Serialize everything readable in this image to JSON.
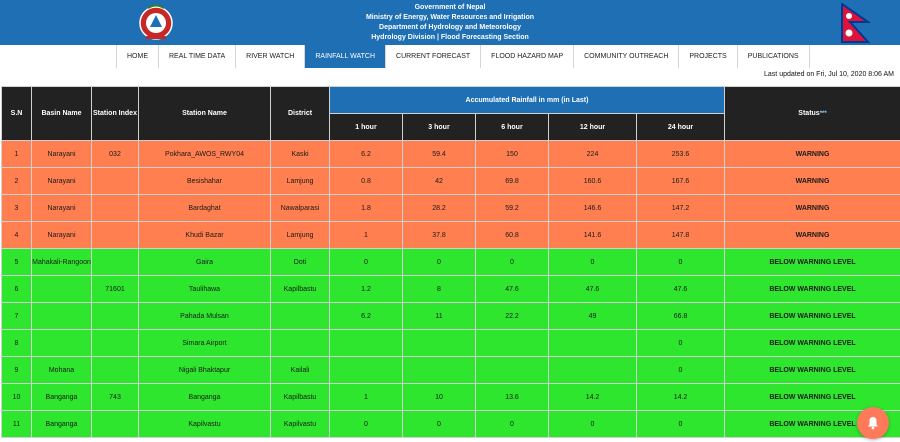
{
  "header": {
    "line1": "Government of Nepal",
    "line2": "Ministry of Energy, Water Resources and Irrigation",
    "line3": "Department of Hydrology and Meteorology",
    "line4": "Hydrology Division | Flood Forecasting Section",
    "emblem_icon": "nepal-emblem-icon",
    "flag_icon": "nepal-flag-icon"
  },
  "nav": {
    "items": [
      "HOME",
      "REAL TIME DATA",
      "RIVER WATCH",
      "RAINFALL WATCH",
      "CURRENT FORECAST",
      "FLOOD HAZARD MAP",
      "COMMUNITY OUTREACH",
      "PROJECTS",
      "PUBLICATIONS"
    ],
    "active": "RAINFALL WATCH"
  },
  "last_updated": "Last updated on Fri, Jul 10, 2020 8:06 AM",
  "table": {
    "headers": {
      "sn": "S.N",
      "basin": "Basin Name",
      "index": "Station Index",
      "station": "Station Name",
      "district": "District",
      "accum": "Accumulated Rainfall in mm (in Last)",
      "h1": "1 hour",
      "h3": "3 hour",
      "h6": "6 hour",
      "h12": "12 hour",
      "h24": "24 hour",
      "status": "Status",
      "status_mark": "***"
    },
    "rows": [
      [
        "1",
        "Narayani",
        "032",
        "Pokhara_AWOS_RWY04",
        "Kaski",
        "6.2",
        "59.4",
        "150",
        "224",
        "253.6",
        "WARNING"
      ],
      [
        "2",
        "Narayani",
        "",
        "Besishahar",
        "Lamjung",
        "0.8",
        "42",
        "69.8",
        "160.6",
        "167.6",
        "WARNING"
      ],
      [
        "3",
        "Narayani",
        "",
        "Bardaghat",
        "Nawalparasi",
        "1.8",
        "28.2",
        "59.2",
        "146.6",
        "147.2",
        "WARNING"
      ],
      [
        "4",
        "Narayani",
        "",
        "Khudi Bazar",
        "Lamjung",
        "1",
        "37.8",
        "60.8",
        "141.6",
        "147.8",
        "WARNING"
      ],
      [
        "5",
        "Mahakali-Rangoon",
        "",
        "Gaira",
        "Doti",
        "0",
        "0",
        "0",
        "0",
        "0",
        "BELOW WARNING LEVEL"
      ],
      [
        "6",
        "",
        "71601",
        "Taulihawa",
        "Kapilbastu",
        "1.2",
        "8",
        "47.6",
        "47.6",
        "47.6",
        "BELOW WARNING LEVEL"
      ],
      [
        "7",
        "",
        "",
        "Pahada Mulsan",
        "",
        "6.2",
        "11",
        "22.2",
        "49",
        "66.8",
        "BELOW WARNING LEVEL"
      ],
      [
        "8",
        "",
        "",
        "Simara Airport",
        "",
        "",
        "",
        "",
        "",
        "0",
        "BELOW WARNING LEVEL"
      ],
      [
        "9",
        "Mohana",
        "",
        "Nigali Bhaktapur",
        "Kailali",
        "",
        "",
        "",
        "",
        "0",
        "BELOW WARNING LEVEL"
      ],
      [
        "10",
        "Banganga",
        "743",
        "Banganga",
        "Kapilbastu",
        "1",
        "10",
        "13.6",
        "14.2",
        "14.2",
        "BELOW WARNING LEVEL"
      ],
      [
        "11",
        "Banganga",
        "",
        "Kapilvastu",
        "Kapilvastu",
        "0",
        "0",
        "0",
        "0",
        "0",
        "BELOW WARNING LEVEL"
      ]
    ]
  },
  "colors": {
    "banner": "#1e6fb3",
    "warning": "#ff7f50",
    "safe": "#2ee62e",
    "header_dark": "#222222"
  },
  "fab_icon": "bell-icon"
}
